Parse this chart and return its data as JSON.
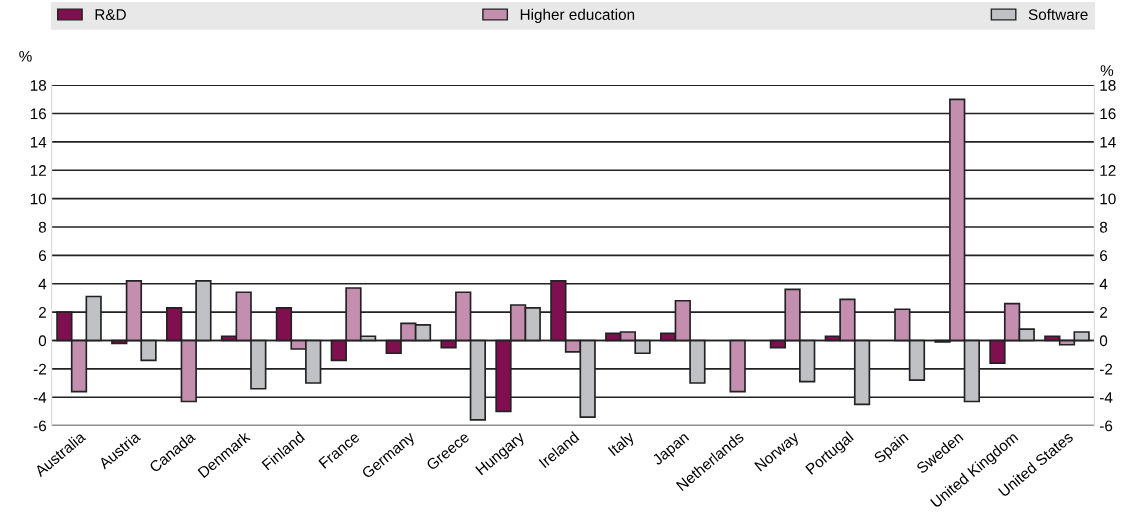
{
  "chart_data": {
    "type": "bar",
    "categories": [
      "Australia",
      "Austria",
      "Canada",
      "Denmark",
      "Finland",
      "France",
      "Germany",
      "Greece",
      "Hungary",
      "Ireland",
      "Italy",
      "Japan",
      "Netherlands",
      "Norway",
      "Portugal",
      "Spain",
      "Sweden",
      "United Kingdom",
      "United States"
    ],
    "series": [
      {
        "name": "R&D",
        "color": "#7f0f4f",
        "values": [
          2.0,
          -0.2,
          2.3,
          0.3,
          2.3,
          -1.4,
          -0.9,
          -0.5,
          -5.0,
          4.2,
          0.5,
          0.5,
          null,
          -0.5,
          0.3,
          null,
          -0.1,
          -1.6,
          0.3
        ]
      },
      {
        "name": "Higher education",
        "color": "#c48fae",
        "values": [
          -3.6,
          4.2,
          -4.3,
          3.4,
          -0.6,
          3.7,
          1.2,
          3.4,
          2.5,
          -0.8,
          0.6,
          2.8,
          -3.6,
          3.6,
          2.9,
          2.2,
          17.0,
          2.6,
          -0.3
        ]
      },
      {
        "name": "Software",
        "color": "#bfc1c5",
        "values": [
          3.1,
          -1.4,
          4.2,
          -3.4,
          -3.0,
          0.3,
          1.1,
          -5.6,
          2.3,
          -5.4,
          -0.9,
          -3.0,
          null,
          -2.9,
          -4.5,
          -2.8,
          -4.3,
          0.8,
          0.6
        ]
      }
    ],
    "ylabel": "%",
    "y2label": "%",
    "ylim": [
      -6,
      18
    ],
    "yticks": [
      -6,
      -4,
      -2,
      0,
      2,
      4,
      6,
      8,
      10,
      12,
      14,
      16,
      18
    ],
    "y2lim": [
      -6,
      18
    ],
    "y2ticks": [
      -6,
      -4,
      -2,
      0,
      2,
      4,
      6,
      8,
      10,
      12,
      14,
      16,
      18
    ],
    "grid": "y",
    "legend": "top"
  }
}
